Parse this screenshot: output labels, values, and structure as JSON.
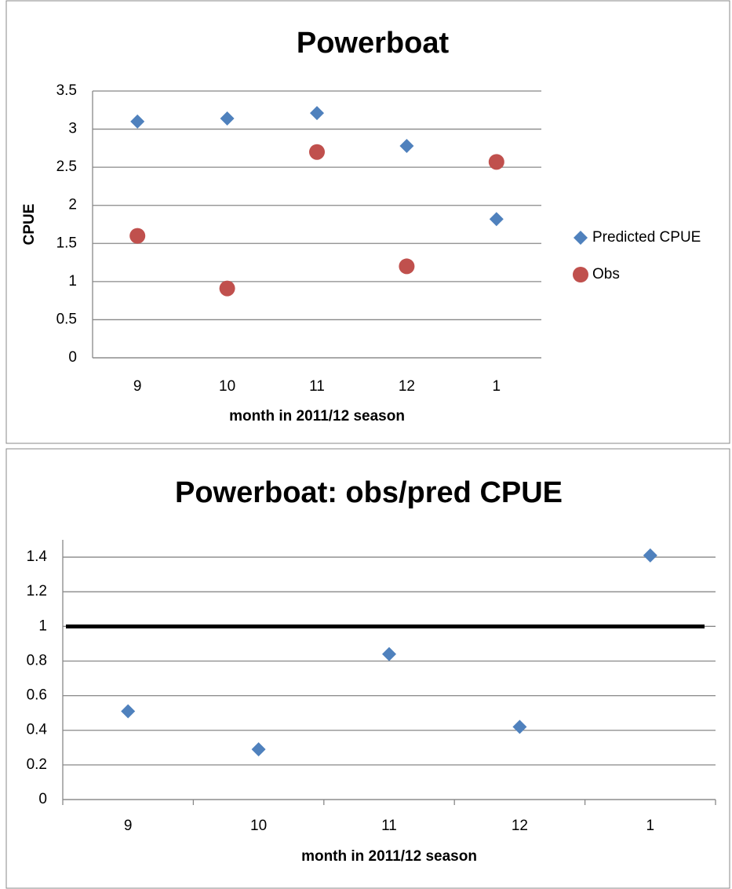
{
  "chart_data": [
    {
      "type": "scatter",
      "title": "Powerboat",
      "x_label": "month in 2011/12 season",
      "y_label": "CPUE",
      "categories": [
        "9",
        "10",
        "11",
        "12",
        "1"
      ],
      "series": [
        {
          "name": "Predicted CPUE",
          "color": "#4f81bd",
          "marker": "diamond",
          "values": [
            3.1,
            3.14,
            3.21,
            2.78,
            1.82
          ]
        },
        {
          "name": "Obs",
          "color": "#c0504d",
          "marker": "circle",
          "values": [
            1.6,
            0.91,
            2.7,
            1.2,
            2.57
          ]
        }
      ],
      "ylim": [
        0,
        3.5
      ],
      "yticks": [
        0,
        0.5,
        1,
        1.5,
        2,
        2.5,
        3,
        3.5
      ],
      "grid": true,
      "legend": "right"
    },
    {
      "type": "scatter",
      "title": "Powerboat: obs/pred CPUE",
      "x_label": "month in 2011/12 season",
      "categories": [
        "9",
        "10",
        "11",
        "12",
        "1"
      ],
      "series": [
        {
          "name": "obs/pred",
          "color": "#4f81bd",
          "marker": "diamond",
          "values": [
            0.51,
            0.29,
            0.84,
            0.42,
            1.41
          ]
        }
      ],
      "reference_line": 1,
      "ylim": [
        0,
        1.5
      ],
      "yticks": [
        0,
        0.2,
        0.4,
        0.6,
        0.8,
        1,
        1.2,
        1.4
      ],
      "grid": true
    }
  ]
}
